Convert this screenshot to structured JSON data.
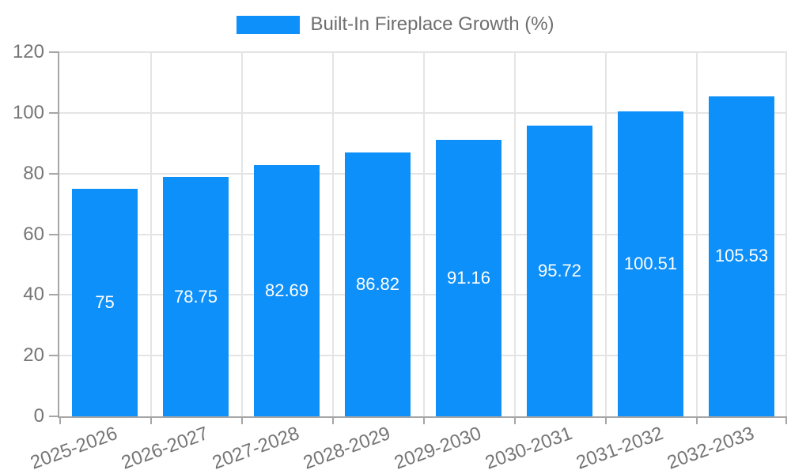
{
  "chart_data": {
    "type": "bar",
    "title": "Built-In Fireplace Growth (%)",
    "series_name": "Built-In Fireplace Growth (%)",
    "categories": [
      "2025-2026",
      "2026-2027",
      "2027-2028",
      "2028-2029",
      "2029-2030",
      "2030-2031",
      "2031-2032",
      "2032-2033"
    ],
    "values": [
      75,
      78.75,
      82.69,
      86.82,
      91.16,
      95.72,
      100.51,
      105.53
    ],
    "value_labels": [
      "75",
      "78.75",
      "82.69",
      "86.82",
      "91.16",
      "95.72",
      "100.51",
      "105.53"
    ],
    "xlabel": "",
    "ylabel": "",
    "ylim": [
      0,
      120
    ],
    "yticks": [
      0,
      20,
      40,
      60,
      80,
      100,
      120
    ],
    "grid": true,
    "legend_position": "top"
  },
  "colors": {
    "bar": "#0E90FA",
    "bar_label": "#FFFFFF",
    "axis_text": "#757575",
    "legend_text": "#6E6E6E",
    "gridline": "#E4E4E4",
    "axis_line": "#A6A6A6",
    "background": "#FFFFFF"
  }
}
